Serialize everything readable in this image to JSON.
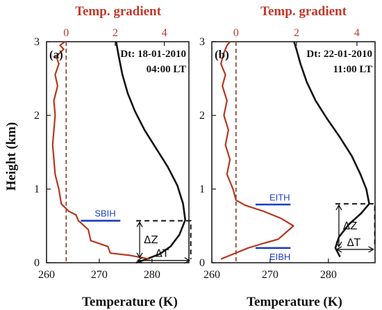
{
  "figure": {
    "y_axis_label": "Height (km)",
    "x_axis_label": "Temperature (K)",
    "top_axis_label": "Temp. gradient"
  },
  "chart_data": [
    {
      "type": "line",
      "panel": "(a)",
      "date_label": "Dt: 18-01-2010",
      "time_label": "04:00 LT",
      "xlabel": "Temperature (K)",
      "ylabel": "Height (km)",
      "top_xlabel": "Temp. gradient",
      "xlim": [
        260,
        287
      ],
      "ylim": [
        0,
        3
      ],
      "x_ticks": [
        260,
        270,
        280
      ],
      "y_ticks": [
        0,
        1,
        2,
        3
      ],
      "top_xlim": [
        -0.8,
        5
      ],
      "top_x_ticks": [
        0,
        2,
        4
      ],
      "series": [
        {
          "color": "#111111",
          "axis": "bottom",
          "x": [
            277,
            279,
            281.5,
            283.5,
            285.2,
            286.3,
            285.9,
            284.8,
            283,
            280.8,
            278.6,
            276.8,
            275.4,
            274.4,
            273.7,
            273.2
          ],
          "y": [
            0.0,
            0.05,
            0.12,
            0.22,
            0.38,
            0.58,
            0.8,
            1.05,
            1.3,
            1.55,
            1.8,
            2.05,
            2.3,
            2.55,
            2.8,
            3.0
          ]
        },
        {
          "color": "#b5371f",
          "axis": "top",
          "x": [
            3.4,
            2.6,
            1.8,
            1.7,
            1.0,
            0.9,
            0.5,
            0.4,
            0.1,
            -0.2,
            -0.3,
            -0.45,
            -0.5,
            -0.55,
            -0.5,
            -0.45,
            -0.5,
            -0.35,
            -0.45,
            -0.3,
            -0.4,
            -0.1,
            -0.25,
            -0.05
          ],
          "y": [
            0.05,
            0.1,
            0.13,
            0.22,
            0.3,
            0.45,
            0.57,
            0.65,
            0.7,
            0.8,
            1.0,
            1.2,
            1.4,
            1.6,
            1.8,
            2.0,
            2.2,
            2.4,
            2.55,
            2.7,
            2.8,
            2.9,
            2.95,
            3.0
          ]
        }
      ],
      "zero_line": {
        "value": 0,
        "color": "#8b3a1a"
      },
      "layers": [
        {
          "label": "SBIH",
          "height": 0.57,
          "x_from": 266.5,
          "x_to": 274
        }
      ],
      "annotations": {
        "delta_z": "ΔZ",
        "delta_t": "ΔT",
        "box": {
          "x0": 277,
          "x1": 286.3,
          "y0": 0.05,
          "y1": 0.57
        }
      }
    },
    {
      "type": "line",
      "panel": "(b)",
      "date_label": "Dt: 22-01-2010",
      "time_label": "11:00 LT",
      "xlabel": "Temperature (K)",
      "ylabel": "Height (km)",
      "top_xlabel": "Temp. gradient",
      "xlim": [
        260,
        288
      ],
      "ylim": [
        0,
        3
      ],
      "x_ticks": [
        260,
        270,
        280
      ],
      "y_ticks": [
        0,
        1,
        2,
        3
      ],
      "top_xlim": [
        -0.8,
        4.6
      ],
      "top_x_ticks": [
        0,
        2,
        4
      ],
      "series": [
        {
          "color": "#111111",
          "axis": "bottom",
          "x": [
            282,
            281.2,
            281.8,
            283.5,
            285.6,
            287.0,
            286.5,
            285.5,
            284.0,
            282.0,
            279.8,
            277.8,
            276.3,
            275.2,
            274.5,
            274.1
          ],
          "y": [
            0.08,
            0.2,
            0.35,
            0.52,
            0.67,
            0.8,
            1.0,
            1.2,
            1.45,
            1.7,
            1.95,
            2.2,
            2.45,
            2.7,
            2.9,
            3.0
          ]
        },
        {
          "color": "#b5371f",
          "axis": "top",
          "x": [
            -0.5,
            -0.2,
            0.1,
            0.4,
            0.8,
            1.4,
            1.9,
            1.5,
            0.9,
            0.3,
            0.0,
            -0.1,
            -0.3,
            -0.2,
            -0.35,
            -0.25,
            -0.4,
            -0.3,
            -0.45,
            -0.35,
            -0.5,
            -0.4,
            -0.3,
            -0.2
          ],
          "y": [
            0.05,
            0.1,
            0.15,
            0.2,
            0.25,
            0.32,
            0.5,
            0.6,
            0.7,
            0.78,
            0.85,
            1.0,
            1.2,
            1.4,
            1.6,
            1.8,
            2.0,
            2.2,
            2.4,
            2.55,
            2.7,
            2.85,
            2.95,
            3.0
          ]
        }
      ],
      "zero_line": {
        "value": 0,
        "color": "#8b3a1a"
      },
      "layers": [
        {
          "label": "EITH",
          "height": 0.79,
          "x_from": 267.5,
          "x_to": 273.5
        },
        {
          "label": "EIBH",
          "height": 0.2,
          "x_from": 267.5,
          "x_to": 273.5
        }
      ],
      "annotations": {
        "delta_z": "ΔZ",
        "delta_t": "ΔT",
        "box": {
          "x0": 281.2,
          "x1": 287.0,
          "y0": 0.2,
          "y1": 0.8
        }
      }
    }
  ]
}
